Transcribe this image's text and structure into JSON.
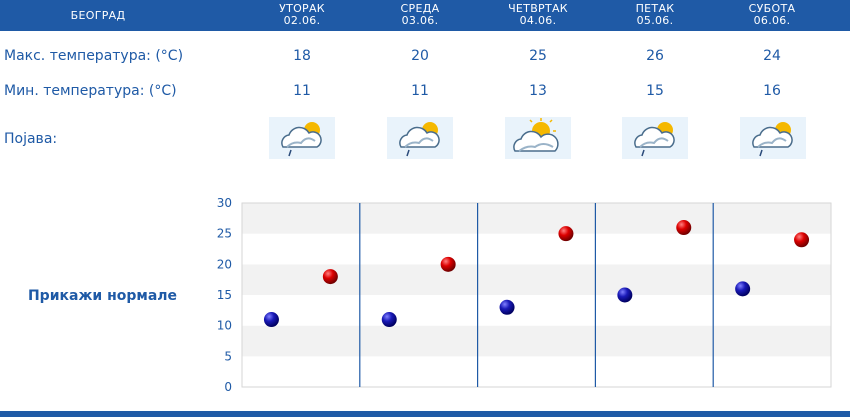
{
  "header": {
    "city": "БЕОГРАД",
    "days": [
      {
        "name": "УТОРАК",
        "date": "02.06."
      },
      {
        "name": "СРЕДА",
        "date": "03.06."
      },
      {
        "name": "ЧЕТВРТАК",
        "date": "04.06."
      },
      {
        "name": "ПЕТАК",
        "date": "05.06."
      },
      {
        "name": "СУБОТА",
        "date": "06.06."
      }
    ]
  },
  "rows": {
    "max_label": "Макс. температура: (°C)",
    "min_label": "Мин. температура: (°C)",
    "phenomenon_label": "Појава:",
    "max": [
      "18",
      "20",
      "25",
      "26",
      "24"
    ],
    "min": [
      "11",
      "11",
      "13",
      "15",
      "16"
    ]
  },
  "icons": [
    "cloud-sun-rain-icon",
    "cloud-sun-rain-icon",
    "cloud-sun-icon",
    "cloud-sun-rain-icon",
    "cloud-sun-rain-icon"
  ],
  "normals_link": "Прикажи нормале",
  "colors": {
    "header": "#1f5aa6",
    "text": "#1f5aa6",
    "max_marker": "#cc0000",
    "min_marker": "#1a1aaa"
  },
  "chart_data": {
    "type": "scatter",
    "categories": [
      "02.06.",
      "03.06.",
      "04.06.",
      "05.06.",
      "06.06."
    ],
    "series": [
      {
        "values": [
          11,
          11,
          13,
          15,
          16
        ]
      },
      {
        "values": [
          18,
          20,
          25,
          26,
          24
        ]
      }
    ],
    "ylim": [
      0,
      30
    ],
    "yticks": [
      0,
      5,
      10,
      15,
      20,
      25,
      30
    ],
    "grid": true
  }
}
